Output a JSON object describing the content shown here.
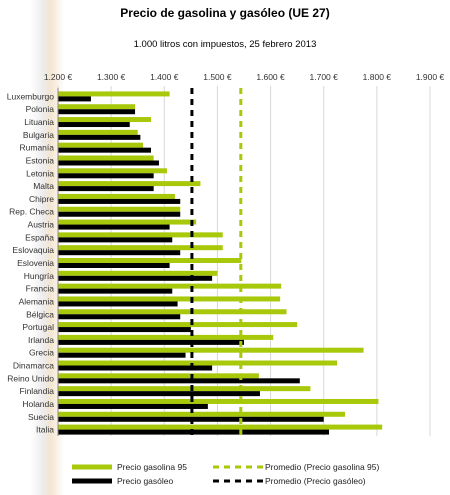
{
  "chart_data": {
    "type": "bar",
    "orientation": "horizontal",
    "title": "Precio de gasolina y gasóleo (UE 27)",
    "subtitle": "1.000 litros con impuestos, 25 febrero 2013",
    "xlim": [
      1200,
      1900
    ],
    "x_ticks": [
      "1.200 €",
      "1.300 €",
      "1.400 €",
      "1.500 €",
      "1.600 €",
      "1.700 €",
      "1.800 €",
      "1.900 €"
    ],
    "x_tick_values": [
      1200,
      1300,
      1400,
      1500,
      1600,
      1700,
      1800,
      1900
    ],
    "categories": [
      "Luxemburgo",
      "Polonia",
      "Lituania",
      "Bulgaria",
      "Rumanía",
      "Estonia",
      "Letonia",
      "Malta",
      "Chipre",
      "Rep. Checa",
      "Austria",
      "España",
      "Eslovaquia",
      "Eslovenia",
      "Hungría",
      "Francia",
      "Alemania",
      "Bélgica",
      "Portugal",
      "Irlanda",
      "Grecia",
      "Dinamarca",
      "Reino Unido",
      "Finlandia",
      "Holanda",
      "Suecia",
      "Italia"
    ],
    "series": [
      {
        "name": "Precio gasolina 95",
        "color": "#a8c80a",
        "values": [
          1410,
          1345,
          1375,
          1350,
          1360,
          1380,
          1405,
          1468,
          1420,
          1430,
          1460,
          1510,
          1510,
          1545,
          1500,
          1620,
          1618,
          1630,
          1650,
          1605,
          1775,
          1725,
          1578,
          1675,
          1803,
          1740,
          1810
        ]
      },
      {
        "name": "Precio gasóleo",
        "color": "#000000",
        "values": [
          1262,
          1345,
          1335,
          1355,
          1375,
          1390,
          1380,
          1380,
          1430,
          1430,
          1410,
          1415,
          1430,
          1410,
          1490,
          1415,
          1425,
          1430,
          1450,
          1550,
          1440,
          1490,
          1655,
          1580,
          1482,
          1700,
          1710
        ]
      }
    ],
    "averages": [
      {
        "name": "Promedio (Precio gasolina 95)",
        "value": 1544,
        "color": "#a8c80a"
      },
      {
        "name": "Promedio (Precio gasóleo)",
        "value": 1452,
        "color": "#000000"
      }
    ],
    "legend_position": "bottom"
  }
}
